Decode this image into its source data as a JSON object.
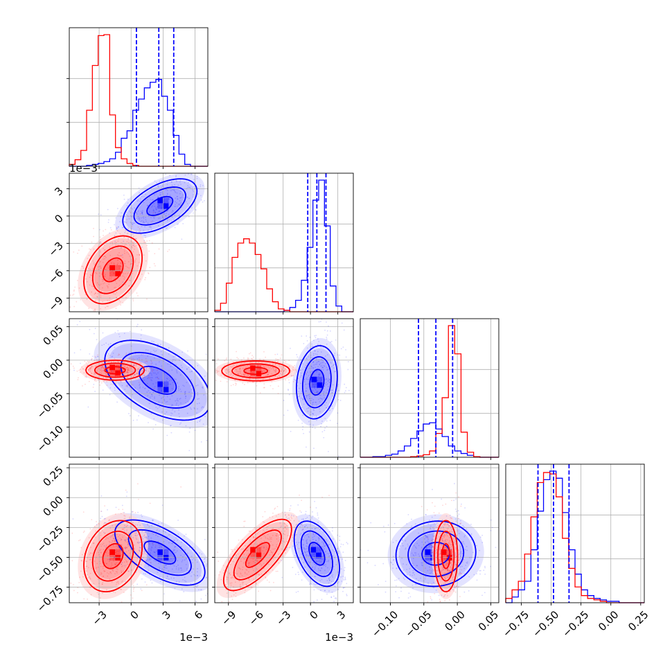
{
  "chart_data": {
    "type": "corner",
    "series": [
      {
        "name": "",
        "color": "#0000ff"
      },
      {
        "name": "",
        "color": "#ff0000"
      }
    ],
    "grid": true,
    "parameters": [
      {
        "id": "p0",
        "range": [
          -0.0058,
          0.0072
        ],
        "ticks": [
          -3,
          0,
          3,
          6
        ],
        "tick_labels": [
          "−3",
          "0",
          "3",
          "6"
        ],
        "tick_scale": 0.001,
        "offset_label": "1e−3",
        "label": ""
      },
      {
        "id": "p1",
        "range": [
          -0.0105,
          0.0047
        ],
        "ticks": [
          -9,
          -6,
          -3,
          0,
          3
        ],
        "tick_labels": [
          "−9",
          "−6",
          "−3",
          "0",
          "3"
        ],
        "tick_scale": 0.001,
        "offset_label": "1e−3",
        "label": ""
      },
      {
        "id": "p2",
        "range": [
          -0.145,
          0.062
        ],
        "ticks": [
          -0.1,
          -0.05,
          0.0,
          0.05
        ],
        "tick_labels": [
          "−0.10",
          "−0.05",
          "0.00",
          "0.05"
        ],
        "tick_scale": 1,
        "offset_label": "",
        "label": ""
      },
      {
        "id": "p3",
        "range": [
          -0.88,
          0.28
        ],
        "ticks": [
          -0.75,
          -0.5,
          -0.25,
          0.0,
          0.25
        ],
        "tick_labels": [
          "−0.75",
          "−0.50",
          "−0.25",
          "0.00",
          "0.25"
        ],
        "tick_scale": 1,
        "offset_label": "",
        "label": ""
      }
    ],
    "marginals": [
      {
        "param": "p0",
        "quantiles_dashed": [
          0.0005,
          0.0026,
          0.004
        ],
        "blue": {
          "edges": [
            -0.0058,
            0.0072
          ],
          "counts": [
            0,
            0,
            0,
            1,
            2,
            3,
            5,
            8,
            15,
            30,
            38,
            60,
            72,
            84,
            90,
            93,
            75,
            60,
            33,
            13,
            2,
            0,
            0,
            0
          ]
        },
        "red": {
          "edges": [
            -0.0058,
            0.0072
          ],
          "counts": [
            2,
            7,
            17,
            60,
            108,
            140,
            141,
            55,
            20,
            8,
            3,
            1,
            0,
            0,
            0,
            0,
            0,
            0,
            0,
            0,
            0,
            0,
            0,
            0
          ]
        }
      },
      {
        "param": "p1",
        "quantiles_dashed": [
          -0.0003,
          0.0007,
          0.0017
        ],
        "blue": {
          "edges": [
            -0.0105,
            0.0047
          ],
          "counts": [
            0,
            0,
            0,
            0,
            0,
            0,
            0,
            0,
            0,
            0,
            0,
            0,
            1,
            3,
            8,
            22,
            45,
            78,
            92,
            60,
            18,
            4,
            0,
            0
          ]
        },
        "red": {
          "edges": [
            -0.0105,
            0.0047
          ],
          "counts": [
            1,
            6,
            20,
            38,
            48,
            51,
            48,
            40,
            30,
            16,
            7,
            2,
            1,
            0,
            0,
            0,
            0,
            0,
            0,
            0,
            0,
            0,
            0,
            0
          ]
        }
      },
      {
        "param": "p2",
        "quantiles_dashed": [
          -0.058,
          -0.032,
          -0.007
        ],
        "blue": {
          "edges": [
            -0.145,
            0.062
          ],
          "counts": [
            0,
            0,
            1,
            1,
            3,
            5,
            10,
            18,
            30,
            42,
            53,
            55,
            45,
            33,
            18,
            10,
            6,
            3,
            1,
            0,
            0,
            0
          ]
        },
        "red": {
          "edges": [
            -0.145,
            0.062
          ],
          "counts": [
            0,
            0,
            0,
            0,
            0,
            0,
            0,
            0,
            1,
            2,
            4,
            10,
            38,
            95,
            210,
            165,
            40,
            8,
            1,
            0,
            0,
            0
          ]
        }
      },
      {
        "param": "p3",
        "quantiles_dashed": [
          -0.61,
          -0.48,
          -0.35
        ],
        "blue": {
          "edges": [
            -0.88,
            0.28
          ],
          "counts": [
            0,
            4,
            9,
            15,
            37,
            64,
            86,
            92,
            87,
            63,
            37,
            20,
            9,
            5,
            3,
            2,
            1,
            1,
            0,
            0,
            0,
            0
          ]
        },
        "red": {
          "edges": [
            -0.88,
            0.28
          ],
          "counts": [
            3,
            9,
            15,
            34,
            60,
            84,
            91,
            90,
            74,
            45,
            24,
            11,
            5,
            3,
            2,
            1,
            0,
            0,
            0,
            0,
            0,
            0
          ]
        }
      }
    ],
    "blobs": [
      {
        "x": "p0",
        "y": "p1",
        "blue": {
          "cx": 0.0027,
          "cy": 0.0011,
          "sx": 0.0014,
          "sy": 0.0012,
          "rho": 0.55,
          "nmode": [
            0.003,
            0.0014
          ]
        },
        "red": {
          "cx": -0.0017,
          "cy": -0.0059,
          "sx": 0.0011,
          "sy": 0.0015,
          "rho": 0.35,
          "nmode": [
            -0.0015,
            -0.006
          ]
        }
      },
      {
        "x": "p0",
        "y": "p2",
        "blue": {
          "cx": 0.0025,
          "cy": -0.03,
          "sx": 0.002,
          "sy": 0.024,
          "rho": -0.5,
          "nmode": [
            0.003,
            -0.04
          ]
        },
        "red": {
          "cx": -0.0015,
          "cy": -0.015,
          "sx": 0.0011,
          "sy": 0.006,
          "rho": 0.0,
          "nmode": [
            -0.0015,
            -0.015
          ]
        }
      },
      {
        "x": "p0",
        "y": "p3",
        "blue": {
          "cx": 0.0027,
          "cy": -0.46,
          "sx": 0.0017,
          "sy": 0.11,
          "rho": -0.6,
          "nmode": [
            0.003,
            -0.48
          ]
        },
        "red": {
          "cx": -0.0017,
          "cy": -0.49,
          "sx": 0.0011,
          "sy": 0.12,
          "rho": 0.25,
          "nmode": [
            -0.0015,
            -0.48
          ]
        }
      },
      {
        "x": "p1",
        "y": "p2",
        "blue": {
          "cx": 0.0007,
          "cy": -0.033,
          "sx": 0.0009,
          "sy": 0.022,
          "rho": 0.15,
          "nmode": [
            0.0007,
            -0.033
          ]
        },
        "red": {
          "cx": -0.006,
          "cy": -0.016,
          "sx": 0.0015,
          "sy": 0.006,
          "rho": 0.0,
          "nmode": [
            -0.006,
            -0.016
          ]
        }
      },
      {
        "x": "p1",
        "y": "p3",
        "blue": {
          "cx": 0.0007,
          "cy": -0.47,
          "sx": 0.001,
          "sy": 0.11,
          "rho": -0.45,
          "nmode": [
            0.0006,
            -0.46
          ]
        },
        "red": {
          "cx": -0.0058,
          "cy": -0.48,
          "sx": 0.0015,
          "sy": 0.12,
          "rho": 0.72,
          "nmode": [
            -0.006,
            -0.46
          ]
        }
      },
      {
        "x": "p2",
        "y": "p3",
        "blue": {
          "cx": -0.032,
          "cy": -0.47,
          "sx": 0.024,
          "sy": 0.11,
          "rho": 0.05,
          "nmode": [
            -0.04,
            -0.48
          ]
        },
        "red": {
          "cx": -0.017,
          "cy": -0.49,
          "sx": 0.007,
          "sy": 0.12,
          "rho": 0.0,
          "nmode": [
            -0.016,
            -0.48
          ]
        }
      }
    ]
  }
}
